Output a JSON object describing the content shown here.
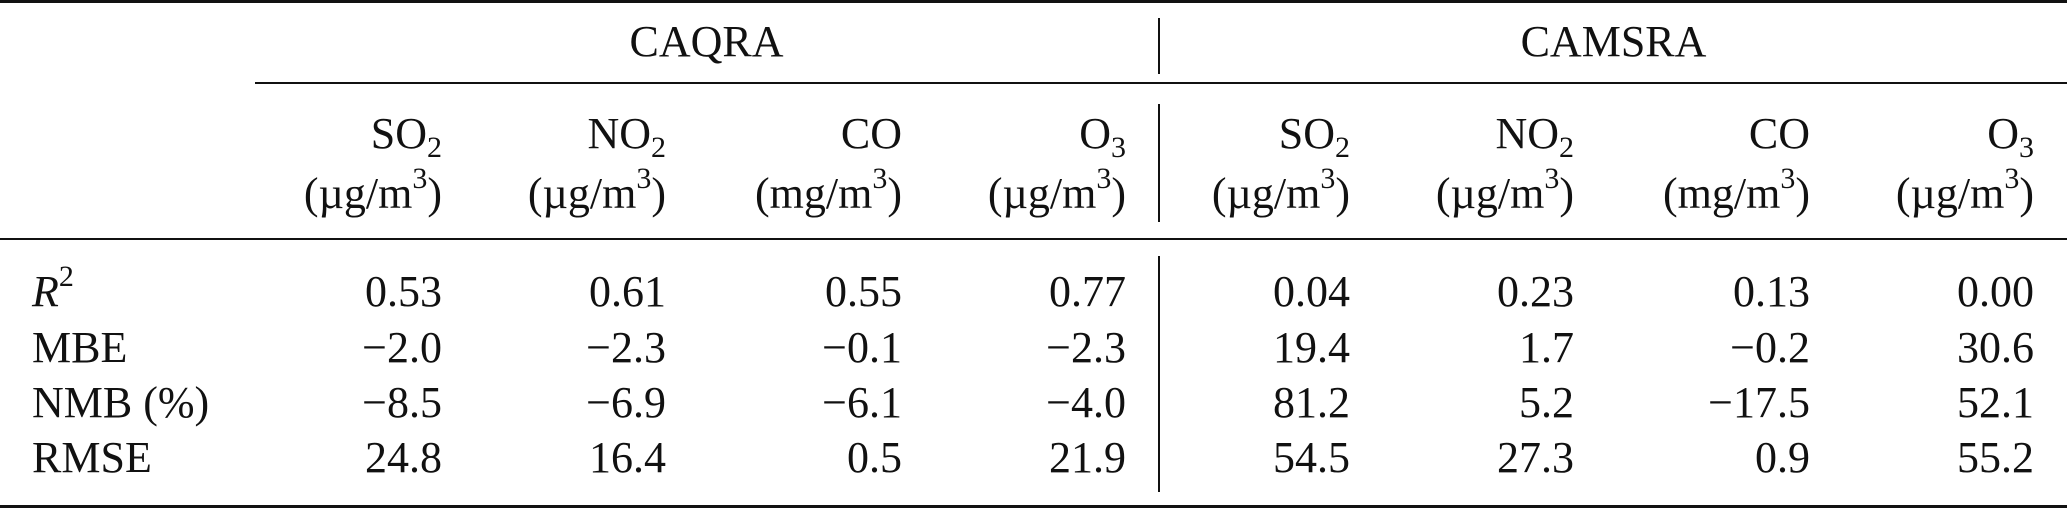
{
  "groups": [
    "CAQRA",
    "CAMSRA"
  ],
  "columns": [
    {
      "species": "SO",
      "sub": "2",
      "unit_pre": "(µg/m",
      "unit_sup": "3",
      "unit_post": ")"
    },
    {
      "species": "NO",
      "sub": "2",
      "unit_pre": "(µg/m",
      "unit_sup": "3",
      "unit_post": ")"
    },
    {
      "species": "CO",
      "sub": "",
      "unit_pre": "(mg/m",
      "unit_sup": "3",
      "unit_post": ")"
    },
    {
      "species": "O",
      "sub": "3",
      "unit_pre": "(µg/m",
      "unit_sup": "3",
      "unit_post": ")"
    },
    {
      "species": "SO",
      "sub": "2",
      "unit_pre": "(µg/m",
      "unit_sup": "3",
      "unit_post": ")"
    },
    {
      "species": "NO",
      "sub": "2",
      "unit_pre": "(µg/m",
      "unit_sup": "3",
      "unit_post": ")"
    },
    {
      "species": "CO",
      "sub": "",
      "unit_pre": "(mg/m",
      "unit_sup": "3",
      "unit_post": ")"
    },
    {
      "species": "O",
      "sub": "3",
      "unit_pre": "(µg/m",
      "unit_sup": "3",
      "unit_post": ")"
    }
  ],
  "rows": [
    {
      "label_main": "R",
      "label_sup": "2",
      "label_rest": "",
      "values": [
        "0.53",
        "0.61",
        "0.55",
        "0.77",
        "0.04",
        "0.23",
        "0.13",
        "0.00"
      ]
    },
    {
      "label_main": "MBE",
      "label_sup": "",
      "label_rest": "",
      "values": [
        "−2.0",
        "−2.3",
        "−0.1",
        "−2.3",
        "19.4",
        "1.7",
        "−0.2",
        "30.6"
      ]
    },
    {
      "label_main": "NMB (",
      "label_sup": "",
      "label_rest": "%)",
      "values": [
        "−8.5",
        "−6.9",
        "−6.1",
        "−4.0",
        "81.2",
        "5.2",
        "−17.5",
        "52.1"
      ]
    },
    {
      "label_main": "RMSE",
      "label_sup": "",
      "label_rest": "",
      "values": [
        "24.8",
        "16.4",
        "0.5",
        "21.9",
        "54.5",
        "27.3",
        "0.9",
        "55.2"
      ]
    }
  ]
}
